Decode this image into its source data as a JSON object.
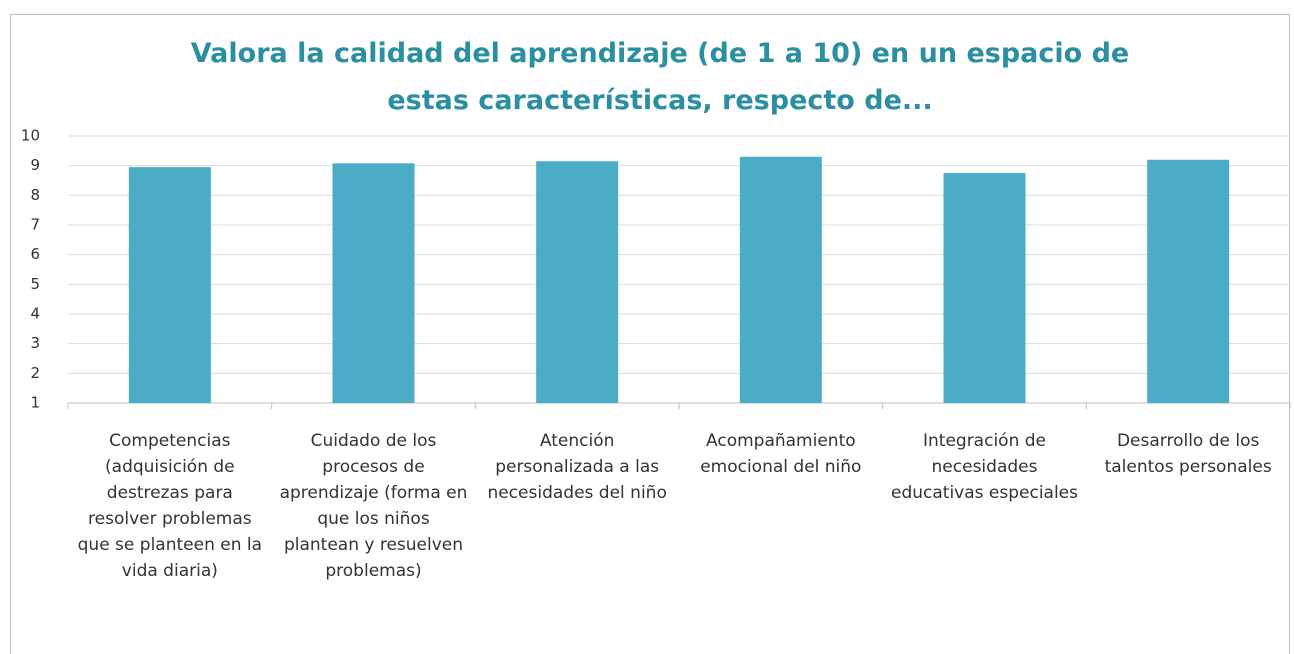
{
  "chart_data": {
    "type": "bar",
    "title": "Valora la calidad del aprendizaje (de 1 a 10) en un espacio de estas características, respecto de...",
    "categories": [
      "Competencias (adquisición de destrezas para resolver problemas que se planteen en la vida diaria)",
      "Cuidado de los procesos de aprendizaje (forma en que los niños plantean y resuelven problemas)",
      "Atención personalizada a las necesidades del niño",
      "Acompañamiento emocional del niño",
      "Integración de necesidades educativas especiales",
      "Desarrollo de los talentos personales"
    ],
    "values": [
      8.95,
      9.08,
      9.15,
      9.3,
      8.75,
      9.2
    ],
    "color": "#4bacc6",
    "ylim": [
      1,
      10
    ],
    "yticks": [
      1,
      2,
      3,
      4,
      5,
      6,
      7,
      8,
      9,
      10
    ],
    "grid": true
  }
}
